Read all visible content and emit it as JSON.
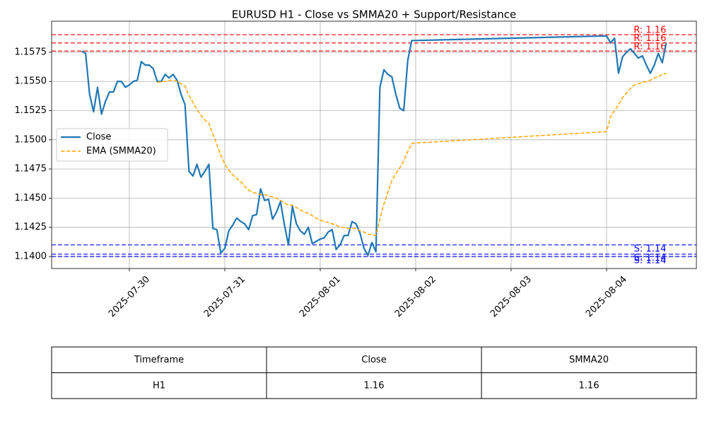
{
  "chart_data": {
    "type": "line",
    "title": "EURUSD H1 - Close vs SMMA20 + Support/Resistance",
    "x": [
      "2025-07-29T12:00",
      "2025-07-29T13:00",
      "2025-07-29T14:00",
      "2025-07-29T15:00",
      "2025-07-29T16:00",
      "2025-07-29T17:00",
      "2025-07-29T18:00",
      "2025-07-29T19:00",
      "2025-07-29T20:00",
      "2025-07-29T21:00",
      "2025-07-29T22:00",
      "2025-07-29T23:00",
      "2025-07-30T00:00",
      "2025-07-30T01:00",
      "2025-07-30T02:00",
      "2025-07-30T03:00",
      "2025-07-30T04:00",
      "2025-07-30T05:00",
      "2025-07-30T06:00",
      "2025-07-30T07:00",
      "2025-07-30T08:00",
      "2025-07-30T09:00",
      "2025-07-30T10:00",
      "2025-07-30T11:00",
      "2025-07-30T12:00",
      "2025-07-30T13:00",
      "2025-07-30T14:00",
      "2025-07-30T15:00",
      "2025-07-30T16:00",
      "2025-07-30T17:00",
      "2025-07-30T18:00",
      "2025-07-30T19:00",
      "2025-07-30T20:00",
      "2025-07-30T21:00",
      "2025-07-30T22:00",
      "2025-07-30T23:00",
      "2025-07-31T00:00",
      "2025-07-31T01:00",
      "2025-07-31T02:00",
      "2025-07-31T03:00",
      "2025-07-31T04:00",
      "2025-07-31T05:00",
      "2025-07-31T06:00",
      "2025-07-31T07:00",
      "2025-07-31T08:00",
      "2025-07-31T09:00",
      "2025-07-31T10:00",
      "2025-07-31T11:00",
      "2025-07-31T12:00",
      "2025-07-31T13:00",
      "2025-07-31T14:00",
      "2025-07-31T15:00",
      "2025-07-31T16:00",
      "2025-07-31T17:00",
      "2025-07-31T18:00",
      "2025-07-31T19:00",
      "2025-07-31T20:00",
      "2025-07-31T21:00",
      "2025-07-31T22:00",
      "2025-07-31T23:00",
      "2025-08-01T00:00",
      "2025-08-01T01:00",
      "2025-08-01T02:00",
      "2025-08-01T03:00",
      "2025-08-01T04:00",
      "2025-08-01T05:00",
      "2025-08-01T06:00",
      "2025-08-01T07:00",
      "2025-08-01T08:00",
      "2025-08-01T09:00",
      "2025-08-01T10:00",
      "2025-08-01T11:00",
      "2025-08-01T12:00",
      "2025-08-01T13:00",
      "2025-08-01T14:00",
      "2025-08-01T15:00",
      "2025-08-01T16:00",
      "2025-08-01T17:00",
      "2025-08-01T18:00",
      "2025-08-01T19:00",
      "2025-08-01T20:00",
      "2025-08-01T21:00",
      "2025-08-01T22:00",
      "2025-08-01T23:00",
      "2025-08-04T00:00",
      "2025-08-04T01:00",
      "2025-08-04T02:00",
      "2025-08-04T03:00",
      "2025-08-04T04:00",
      "2025-08-04T05:00",
      "2025-08-04T06:00",
      "2025-08-04T07:00",
      "2025-08-04T08:00",
      "2025-08-04T09:00",
      "2025-08-04T10:00",
      "2025-08-04T11:00",
      "2025-08-04T12:00",
      "2025-08-04T13:00",
      "2025-08-04T14:00",
      "2025-08-04T15:00"
    ],
    "series": [
      {
        "name": "Close",
        "color": "#1f77b4",
        "dashed": false,
        "values": [
          1.1576,
          1.1574,
          1.1539,
          1.1524,
          1.1545,
          1.1522,
          1.1533,
          1.1541,
          1.1541,
          1.155,
          1.155,
          1.1545,
          1.1547,
          1.155,
          1.1551,
          1.1567,
          1.1564,
          1.1564,
          1.1561,
          1.155,
          1.155,
          1.1556,
          1.1553,
          1.1556,
          1.1551,
          1.1539,
          1.153,
          1.1473,
          1.1469,
          1.1479,
          1.1468,
          1.1473,
          1.1479,
          1.1424,
          1.1423,
          1.1403,
          1.1407,
          1.1422,
          1.1427,
          1.1433,
          1.143,
          1.1428,
          1.1423,
          1.1435,
          1.1436,
          1.1458,
          1.1448,
          1.1449,
          1.1432,
          1.1438,
          1.1447,
          1.1427,
          1.141,
          1.1443,
          1.1428,
          1.1422,
          1.1419,
          1.1425,
          1.1411,
          1.1413,
          1.1415,
          1.1416,
          1.1421,
          1.1423,
          1.1406,
          1.141,
          1.1418,
          1.1418,
          1.143,
          1.1428,
          1.142,
          1.1407,
          1.1401,
          1.1412,
          1.1404,
          1.1545,
          1.156,
          1.1556,
          1.1554,
          1.1539,
          1.1527,
          1.1525,
          1.1568,
          1.1585,
          1.1589,
          1.1583,
          1.1587,
          1.1557,
          1.1571,
          1.1575,
          1.1578,
          1.1574,
          1.157,
          1.1572,
          1.1564,
          1.1557,
          1.1564,
          1.1574,
          1.1566,
          1.1583
        ]
      },
      {
        "name": "EMA (SMMA20)",
        "color": "#ffa500",
        "dashed": true,
        "values": [
          null,
          null,
          null,
          null,
          null,
          null,
          null,
          null,
          null,
          null,
          null,
          null,
          null,
          null,
          null,
          null,
          null,
          null,
          null,
          1.1549,
          1.155,
          1.155,
          1.1551,
          1.1551,
          1.155,
          1.1548,
          1.1546,
          1.1538,
          1.1532,
          1.1526,
          1.1521,
          1.1517,
          1.1514,
          1.1505,
          1.1496,
          1.1487,
          1.1479,
          1.1474,
          1.147,
          1.1467,
          1.1464,
          1.146,
          1.1457,
          1.1455,
          1.1454,
          1.1453,
          1.1453,
          1.1452,
          1.1451,
          1.145,
          1.1448,
          1.1446,
          1.1444,
          1.1444,
          1.1442,
          1.144,
          1.1438,
          1.1437,
          1.1435,
          1.1433,
          1.1431,
          1.143,
          1.1429,
          1.1428,
          1.1427,
          1.1425,
          1.1425,
          1.1424,
          1.1424,
          1.1424,
          1.1422,
          1.1421,
          1.1419,
          1.1419,
          1.1418,
          1.1432,
          1.1445,
          1.1455,
          1.1465,
          1.1471,
          1.1476,
          1.1482,
          1.149,
          1.1497,
          1.1507,
          1.152,
          1.1525,
          1.153,
          1.1536,
          1.154,
          1.1544,
          1.1547,
          1.1548,
          1.1549,
          1.155,
          1.1551,
          1.1553,
          1.1554,
          1.1556,
          1.1557
        ]
      }
    ],
    "hlines": [
      {
        "value": 1.159,
        "label": "R: 1.16",
        "color": "#ff0000"
      },
      {
        "value": 1.1583,
        "label": "R: 1.16",
        "color": "#ff0000"
      },
      {
        "value": 1.1576,
        "label": "R: 1.16",
        "color": "#ff0000"
      },
      {
        "value": 1.141,
        "label": "S: 1.14",
        "color": "#0000ff"
      },
      {
        "value": 1.1402,
        "label": "S: 1.14",
        "color": "#0000ff"
      },
      {
        "value": 1.14,
        "label": "S: 1.14",
        "color": "#0000ff"
      }
    ],
    "xlim": [
      "2025-07-29T04:27",
      "2025-08-04T22:35"
    ],
    "xticks": [
      "2025-07-30",
      "2025-07-31",
      "2025-08-01",
      "2025-08-02",
      "2025-08-03",
      "2025-08-04"
    ],
    "ylim": [
      1.13897,
      1.16016
    ],
    "yticks": [
      {
        "value": 1.14,
        "label": "1.1400"
      },
      {
        "value": 1.1425,
        "label": "1.1425"
      },
      {
        "value": 1.145,
        "label": "1.1450"
      },
      {
        "value": 1.1475,
        "label": "1.1475"
      },
      {
        "value": 1.15,
        "label": "1.1500"
      },
      {
        "value": 1.1525,
        "label": "1.1525"
      },
      {
        "value": 1.155,
        "label": "1.1550"
      },
      {
        "value": 1.1575,
        "label": "1.1575"
      }
    ],
    "grid": true,
    "legend": "center left"
  },
  "table": {
    "columns": [
      "Timeframe",
      "Close",
      "SMMA20"
    ],
    "rows": [
      [
        "H1",
        "1.16",
        "1.16"
      ]
    ]
  }
}
